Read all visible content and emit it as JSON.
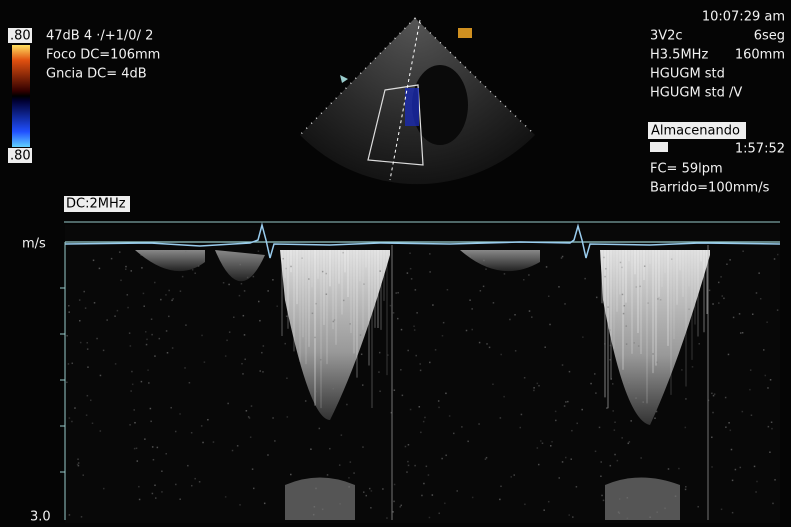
{
  "header_left": {
    "gain": "47dB  4 ·/+1/0/ 2",
    "focus": "Foco DC=106mm",
    "gain_dc": "Gncia DC=   4dB"
  },
  "color_bar": {
    "top": ".80",
    "bottom": ".80"
  },
  "header_right": {
    "time": "10:07:29 am",
    "probe": "3V2c",
    "duration": "6seg",
    "frequency": "H3.5MHz",
    "depth": "160mm",
    "preset": "HGUGM std",
    "preset_v": "HGUGM std /V"
  },
  "status": {
    "label": "Almacenando",
    "clock": "1:57:52",
    "heart_rate": "FC= 59lpm",
    "sweep": "Barrido=100mm/s"
  },
  "doppler": {
    "label": "DC:2MHz",
    "unit": "m/s",
    "scale_max": "3.0"
  }
}
